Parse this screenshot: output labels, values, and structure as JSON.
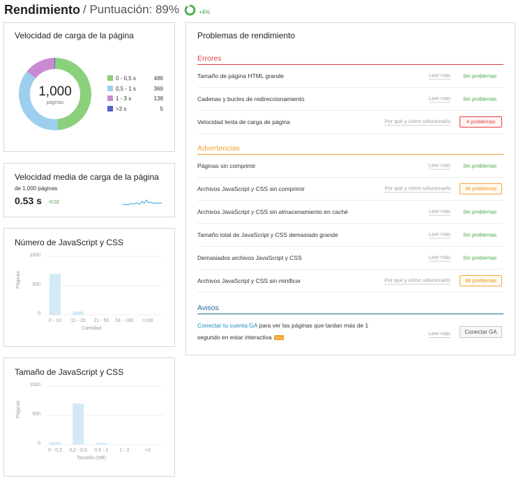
{
  "header": {
    "title": "Rendimiento",
    "score": "/ Puntuación: 89%",
    "score_value": 89,
    "delta": "+4%"
  },
  "load_speed": {
    "title": "Velocidad de carga de la página",
    "total": "1,000",
    "total_unit": "páginas",
    "legend": [
      {
        "label": "0 - 0,5 s",
        "value": "486",
        "color": "#8bd07a"
      },
      {
        "label": "0,5 - 1 s",
        "value": "369",
        "color": "#9ccfee"
      },
      {
        "label": "1 - 3 s",
        "value": "138",
        "color": "#c98ad2"
      },
      {
        "label": ">3 s",
        "value": "5",
        "color": "#5360c8"
      }
    ]
  },
  "avg_speed": {
    "title": "Velocidad media de carga de la página",
    "subtitle": "de 1,000 páginas",
    "value": "0.53 s",
    "delta": "-0.02"
  },
  "js_css_count": {
    "title": "Número de JavaScript y CSS",
    "chart_data": {
      "type": "bar",
      "categories": [
        "0 - 10",
        "11 - 20",
        "21 - 50",
        "51 - 100",
        ">100"
      ],
      "values": [
        700,
        60,
        0,
        0,
        0
      ],
      "ylabel": "Páginas",
      "xlabel": "Cantidad",
      "ylim": [
        0,
        1000
      ],
      "yticks": [
        "1000",
        "500",
        "0"
      ],
      "color": "#d4e9f6"
    }
  },
  "js_css_size": {
    "title": "Tamaño de JavaScript y CSS",
    "chart_data": {
      "type": "bar",
      "categories": [
        "0 - 0,2",
        "0,2 - 0,5",
        "0,5 - 1",
        "1 - 2",
        ">2"
      ],
      "values": [
        40,
        700,
        30,
        0,
        0
      ],
      "ylabel": "Páginas",
      "xlabel": "Tamaño (MB)",
      "ylim": [
        0,
        1000
      ],
      "yticks": [
        "1000",
        "500",
        "0"
      ],
      "color": "#d4e9f6"
    }
  },
  "problems": {
    "title": "Problemas de rendimiento",
    "errors": {
      "title": "Errores",
      "color": "#e04040",
      "rows": [
        {
          "label": "Tamaño de página HTML grande",
          "link": "Leer más",
          "status": "Sin problemas"
        },
        {
          "label": "Cadenas y bucles de redireccionamiento",
          "link": "Leer más",
          "status": "Sin problemas"
        },
        {
          "label": "Velocidad lenta de carga de página",
          "link": "Por qué y cómo solucionarlo",
          "badge": "4 problemas"
        }
      ]
    },
    "warnings": {
      "title": "Advertencias",
      "color": "#f0a12b",
      "rows": [
        {
          "label": "Páginas sin comprimir",
          "link": "Leer más",
          "status": "Sin problemas"
        },
        {
          "label": "Archivos JavaScript y CSS sin comprimir",
          "link": "Por qué y cómo solucionarlo",
          "badge": "36 problemas"
        },
        {
          "label": "Archivos JavaScript y CSS sin almacenamiento en caché",
          "link": "Leer más",
          "status": "Sin problemas"
        },
        {
          "label": "Tamaño total de JavaScript y CSS demasiado grande",
          "link": "Leer más",
          "status": "Sin problemas"
        },
        {
          "label": "Demasiados archivos JavaScript y CSS",
          "link": "Leer más",
          "status": "Sin problemas"
        },
        {
          "label": "Archivos JavaScript y CSS sin minificar",
          "link": "Por qué y cómo solucionarlo",
          "badge": "38 problemas"
        }
      ]
    },
    "notices": {
      "title": "Avisos",
      "color": "#1e6d93",
      "ga_link": "Conectar tu cuenta GA",
      "ga_text": " para ver las páginas que tardan más de 1 segundo en estar interactiva",
      "beta": "BETA",
      "link": "Leer más",
      "button": "Conectar GA"
    }
  }
}
